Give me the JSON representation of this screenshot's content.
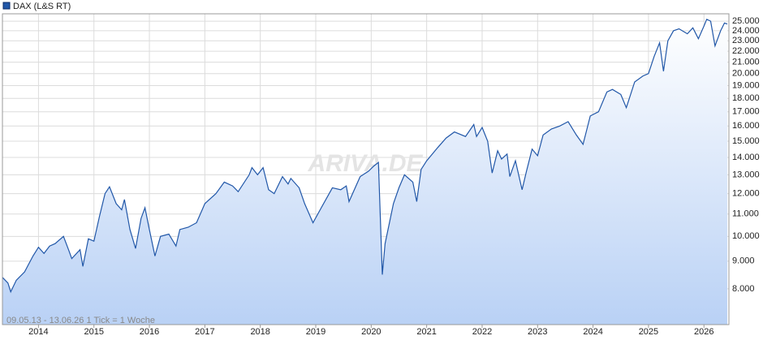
{
  "chart_data": {
    "type": "line",
    "legend": "DAX (L&S RT)",
    "legend_corner": "top-left",
    "note": "09.05.13 - 13.06.26   1 Tick = 1 Woche",
    "watermark": "ARIVA.DE",
    "log_scale": true,
    "grid": true,
    "area_fill": true,
    "x": [
      2013.35,
      2013.45,
      2013.5,
      2013.6,
      2013.75,
      2013.9,
      2014.0,
      2014.1,
      2014.2,
      2014.3,
      2014.45,
      2014.55,
      2014.6,
      2014.75,
      2014.8,
      2014.9,
      2015.0,
      2015.1,
      2015.2,
      2015.28,
      2015.4,
      2015.5,
      2015.55,
      2015.65,
      2015.75,
      2015.85,
      2015.92,
      2016.0,
      2016.1,
      2016.2,
      2016.35,
      2016.48,
      2016.55,
      2016.7,
      2016.85,
      2017.0,
      2017.2,
      2017.35,
      2017.5,
      2017.6,
      2017.8,
      2017.85,
      2017.95,
      2018.05,
      2018.15,
      2018.25,
      2018.4,
      2018.5,
      2018.55,
      2018.7,
      2018.8,
      2018.95,
      2019.1,
      2019.3,
      2019.45,
      2019.55,
      2019.6,
      2019.8,
      2019.95,
      2020.05,
      2020.13,
      2020.2,
      2020.25,
      2020.4,
      2020.5,
      2020.6,
      2020.75,
      2020.82,
      2020.9,
      2021.0,
      2021.2,
      2021.35,
      2021.5,
      2021.7,
      2021.85,
      2021.9,
      2022.0,
      2022.1,
      2022.18,
      2022.28,
      2022.35,
      2022.45,
      2022.5,
      2022.6,
      2022.72,
      2022.8,
      2022.9,
      2023.0,
      2023.1,
      2023.25,
      2023.4,
      2023.55,
      2023.7,
      2023.82,
      2023.95,
      2024.1,
      2024.25,
      2024.35,
      2024.5,
      2024.6,
      2024.75,
      2024.9,
      2025.0,
      2025.1,
      2025.2,
      2025.27,
      2025.35,
      2025.45,
      2025.55,
      2025.7,
      2025.8,
      2025.9,
      2026.0,
      2026.05,
      2026.12,
      2026.2,
      2026.3,
      2026.37,
      2026.42
    ],
    "series": [
      {
        "name": "DAX (L&S RT)",
        "color": "#2157a8",
        "values": [
          8400,
          8200,
          7900,
          8300,
          8600,
          9200,
          9550,
          9300,
          9600,
          9700,
          10000,
          9400,
          9100,
          9450,
          8800,
          9900,
          9800,
          10900,
          12000,
          12350,
          11500,
          11200,
          11700,
          10300,
          9500,
          10800,
          11300,
          10300,
          9200,
          10000,
          10100,
          9600,
          10300,
          10400,
          10600,
          11500,
          12000,
          12600,
          12400,
          12100,
          13000,
          13400,
          13000,
          13400,
          12200,
          12000,
          12900,
          12500,
          12800,
          12300,
          11500,
          10600,
          11300,
          12300,
          12200,
          12400,
          11600,
          12900,
          13200,
          13500,
          13700,
          8500,
          9700,
          11500,
          12300,
          13000,
          12600,
          11600,
          13300,
          13800,
          14600,
          15200,
          15600,
          15300,
          16100,
          15300,
          15900,
          15000,
          13100,
          14400,
          13900,
          14200,
          12900,
          13800,
          12200,
          13200,
          14500,
          14100,
          15400,
          15800,
          16000,
          16300,
          15400,
          14800,
          16700,
          17000,
          18500,
          18700,
          18300,
          17300,
          19300,
          19800,
          20000,
          21500,
          22800,
          20200,
          23000,
          24000,
          24200,
          23700,
          24300,
          23200,
          24500,
          25200,
          25000,
          22500,
          24000,
          24800,
          24700
        ]
      }
    ],
    "xlim": [
      2013.35,
      2026.45
    ],
    "xticks": [
      2014,
      2015,
      2016,
      2017,
      2018,
      2019,
      2020,
      2021,
      2022,
      2023,
      2024,
      2025,
      2026
    ],
    "ylim": [
      6870,
      25800
    ],
    "yticks": [
      {
        "value": 8000,
        "label": "8.000"
      },
      {
        "value": 9000,
        "label": "9.000"
      },
      {
        "value": 10000,
        "label": "10.000"
      },
      {
        "value": 11000,
        "label": "11.000"
      },
      {
        "value": 12000,
        "label": "12.000"
      },
      {
        "value": 13000,
        "label": "13.000"
      },
      {
        "value": 14000,
        "label": "14.000"
      },
      {
        "value": 15000,
        "label": "15.000"
      },
      {
        "value": 16000,
        "label": "16.000"
      },
      {
        "value": 17000,
        "label": "17.000"
      },
      {
        "value": 18000,
        "label": "18.000"
      },
      {
        "value": 19000,
        "label": "19.000"
      },
      {
        "value": 20000,
        "label": "20.000"
      },
      {
        "value": 21000,
        "label": "21.000"
      },
      {
        "value": 22000,
        "label": "22.000"
      },
      {
        "value": 23000,
        "label": "23.000"
      },
      {
        "value": 24000,
        "label": "24.000"
      },
      {
        "value": 25000,
        "label": "25.000"
      }
    ]
  }
}
